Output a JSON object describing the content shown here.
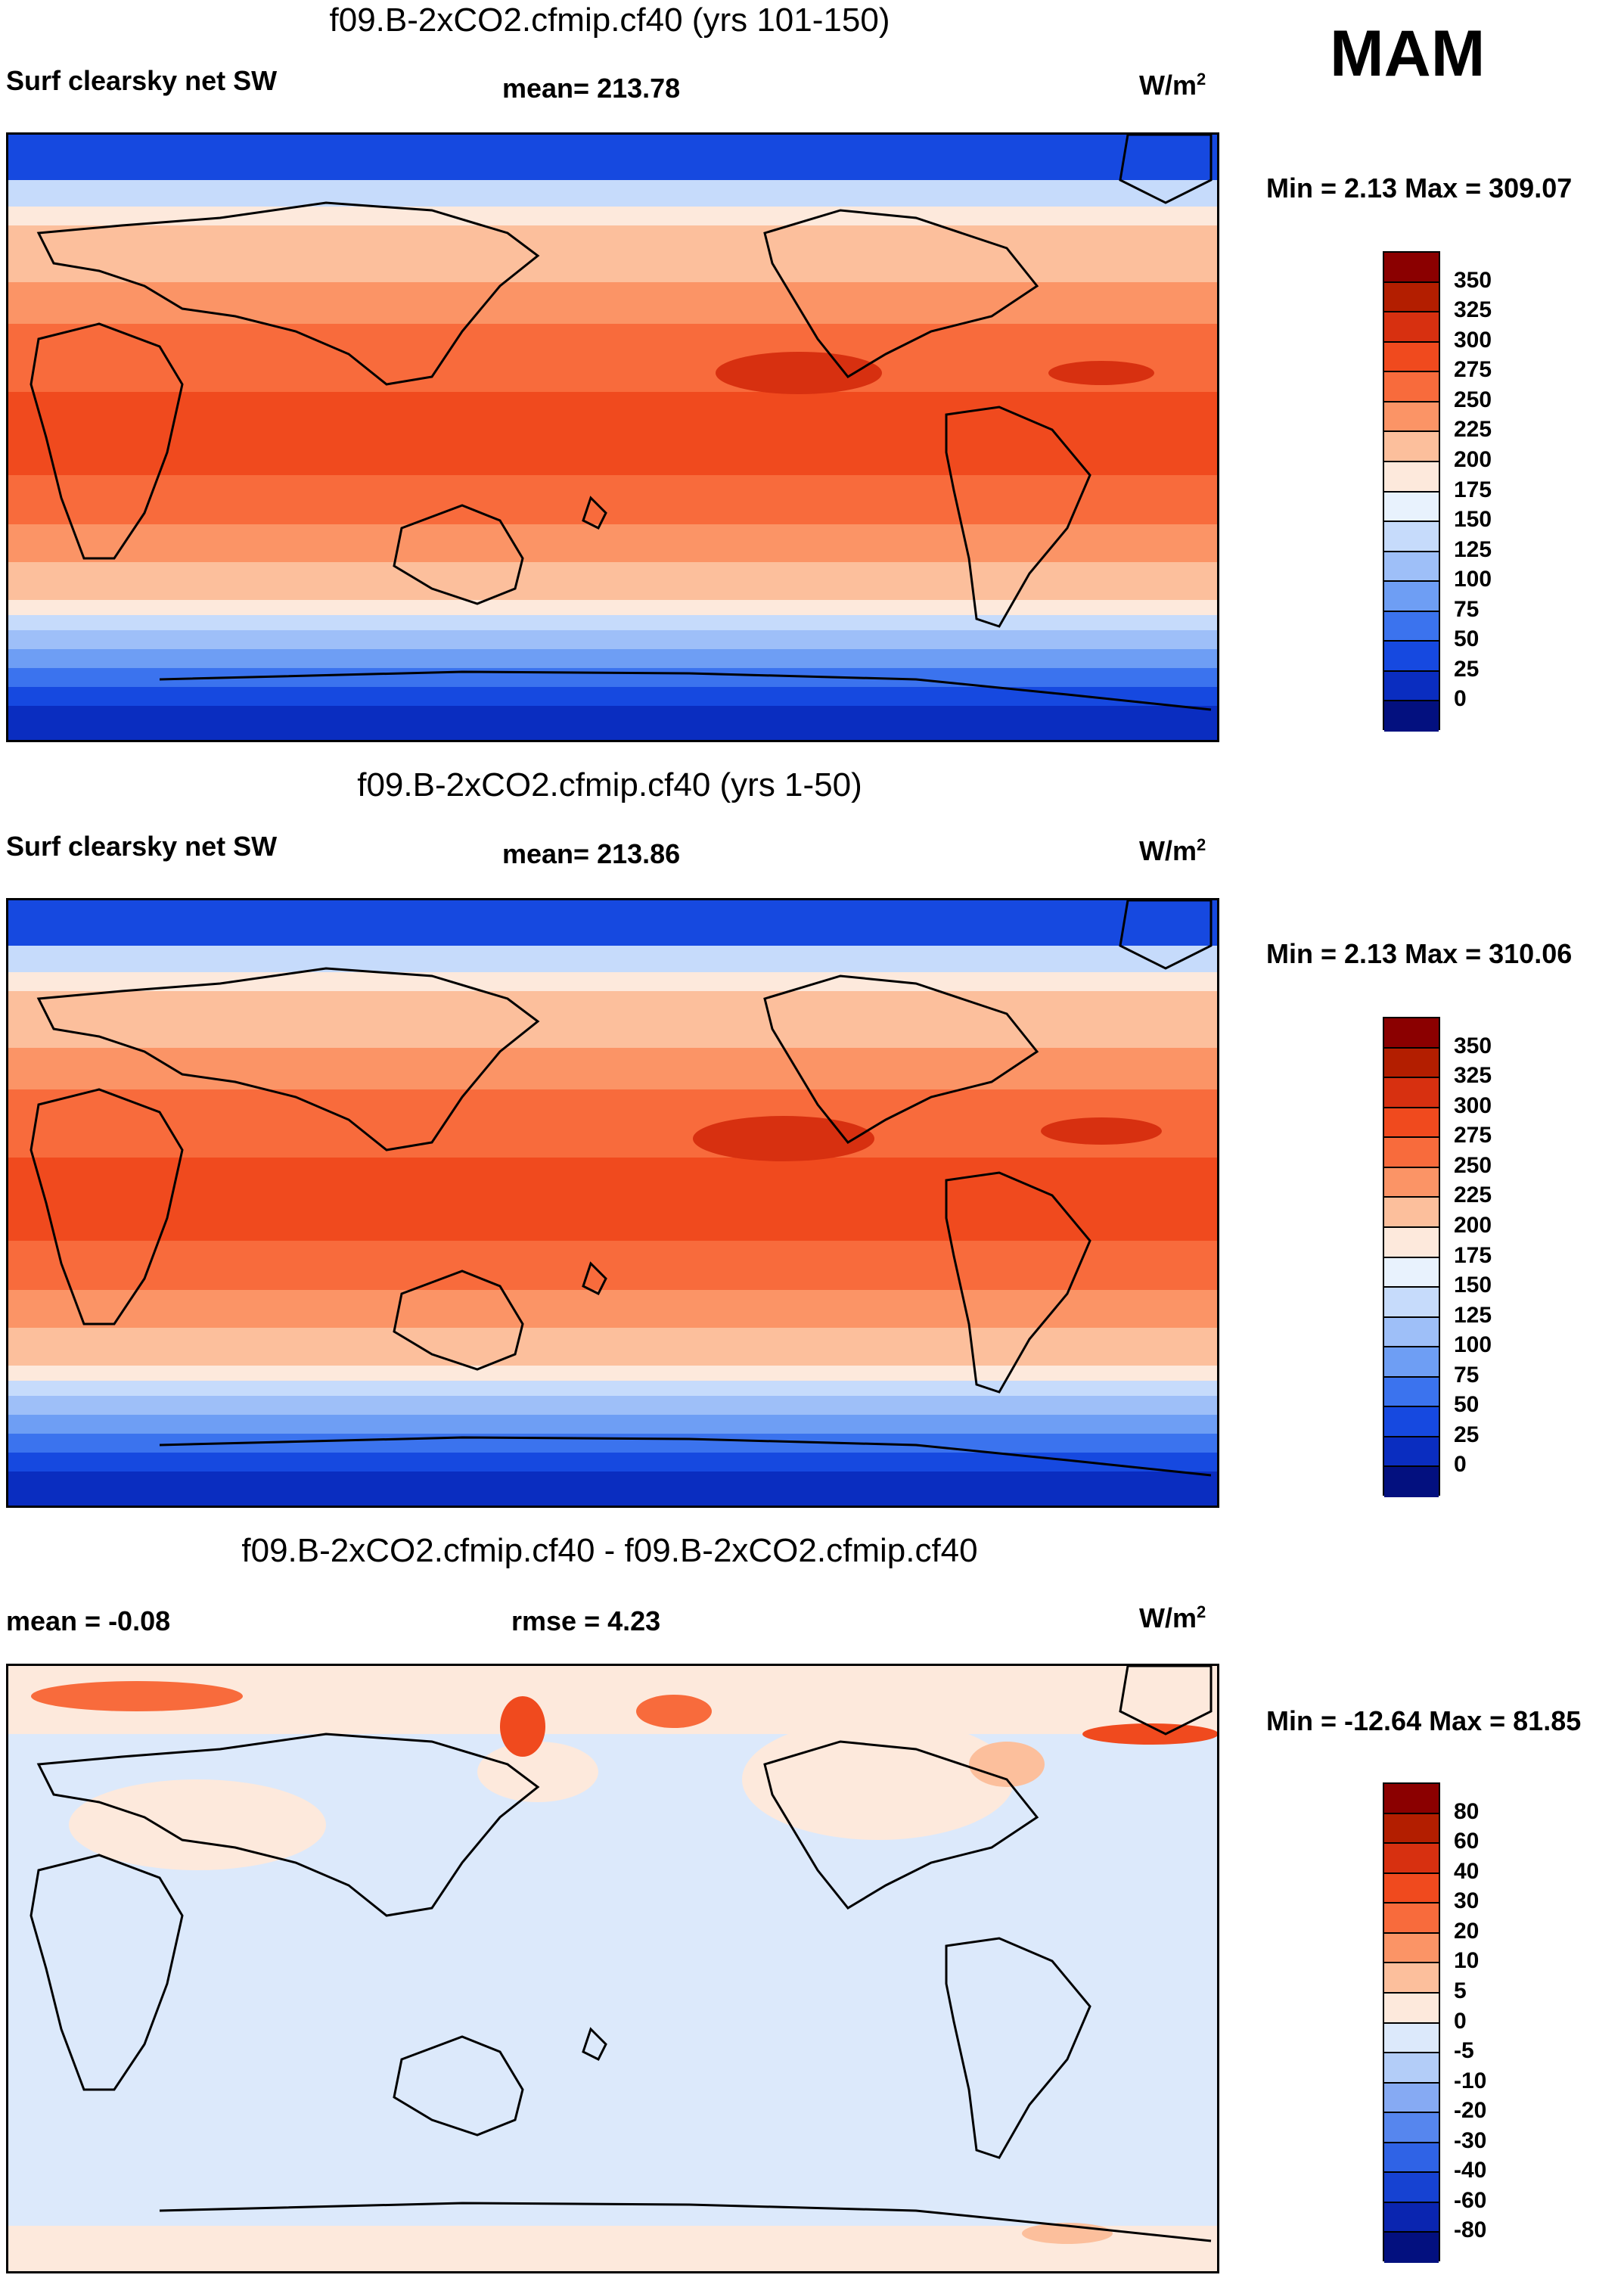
{
  "season": "MAM",
  "panels": [
    {
      "title": "f09.B-2xCO2.cfmip.cf40 (yrs 101-150)",
      "left": "Surf clearsky net SW",
      "center": "mean= 213.78",
      "units_base": "W/m",
      "units_sup": "2",
      "minmax": "Min =   2.13 Max = 309.07",
      "colorbar_labels": [
        "350",
        "325",
        "300",
        "275",
        "250",
        "225",
        "200",
        "175",
        "150",
        "125",
        "100",
        "75",
        "50",
        "25",
        "0"
      ],
      "colors": [
        "#8b0000",
        "#b31e00",
        "#d73010",
        "#f04a1e",
        "#f86b3c",
        "#fb9466",
        "#fcbf9c",
        "#fde9dc",
        "#e8f2fd",
        "#c6dbfb",
        "#9ebff8",
        "#6e9ef4",
        "#3b73ee",
        "#1649e0",
        "#0a2dc0",
        "#03107f"
      ]
    },
    {
      "title": "f09.B-2xCO2.cfmip.cf40 (yrs 1-50)",
      "left": "Surf clearsky net SW",
      "center": "mean= 213.86",
      "units_base": "W/m",
      "units_sup": "2",
      "minmax": "Min =   2.13 Max = 310.06",
      "colorbar_labels": [
        "350",
        "325",
        "300",
        "275",
        "250",
        "225",
        "200",
        "175",
        "150",
        "125",
        "100",
        "75",
        "50",
        "25",
        "0"
      ],
      "colors": [
        "#8b0000",
        "#b31e00",
        "#d73010",
        "#f04a1e",
        "#f86b3c",
        "#fb9466",
        "#fcbf9c",
        "#fde9dc",
        "#e8f2fd",
        "#c6dbfb",
        "#9ebff8",
        "#6e9ef4",
        "#3b73ee",
        "#1649e0",
        "#0a2dc0",
        "#03107f"
      ]
    },
    {
      "title": "f09.B-2xCO2.cfmip.cf40 - f09.B-2xCO2.cfmip.cf40",
      "left": "mean =  -0.08",
      "center": "rmse =    4.23",
      "units_base": "W/m",
      "units_sup": "2",
      "minmax": "Min = -12.64 Max =  81.85",
      "colorbar_labels": [
        "80",
        "60",
        "40",
        "30",
        "20",
        "10",
        "5",
        "0",
        "-5",
        "-10",
        "-20",
        "-30",
        "-40",
        "-60",
        "-80"
      ],
      "colors": [
        "#8b0000",
        "#b31e00",
        "#d73010",
        "#f04a1e",
        "#f86b3c",
        "#fb9466",
        "#fcbf9c",
        "#fde9dc",
        "#dce9fb",
        "#b3cdf8",
        "#86aaf3",
        "#5686ee",
        "#2f63e6",
        "#1642d2",
        "#0a25b0",
        "#03107f"
      ]
    }
  ]
}
